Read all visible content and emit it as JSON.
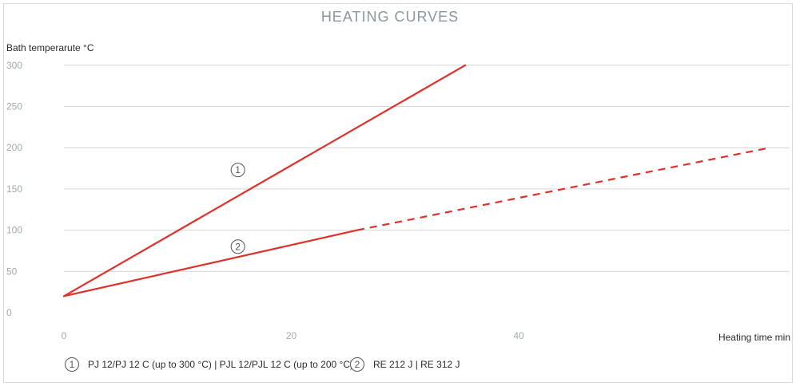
{
  "chart_data": {
    "type": "line",
    "title": "HEATING CURVES",
    "ylabel": "Bath temperarute °C",
    "xlabel": "Heating time min",
    "xlim": [
      0,
      64
    ],
    "ylim": [
      0,
      300
    ],
    "x_ticks": [
      0,
      20,
      40
    ],
    "y_ticks": [
      0,
      50,
      100,
      150,
      200,
      250,
      300
    ],
    "grid": "horizontal",
    "line_color": "#e0302a",
    "series": [
      {
        "marker": "1",
        "style": "solid",
        "points": [
          [
            0,
            20
          ],
          [
            35.3,
            300
          ]
        ],
        "marker_pos": [
          15.3,
          173
        ]
      },
      {
        "marker": "2",
        "style": "solid-then-dashed",
        "points": [
          [
            0,
            20
          ],
          [
            25.8,
            100
          ]
        ],
        "dashed_points": [
          [
            25.8,
            100
          ],
          [
            62.1,
            200
          ]
        ],
        "marker_pos": [
          15.3,
          80
        ]
      }
    ],
    "legend": [
      {
        "marker": "1",
        "label": "PJ 12/PJ 12 C (up to 300 °C) | PJL 12/PJL 12 C (up to 200 °C)"
      },
      {
        "marker": "2",
        "label": "RE 212 J | RE 312 J"
      }
    ]
  }
}
